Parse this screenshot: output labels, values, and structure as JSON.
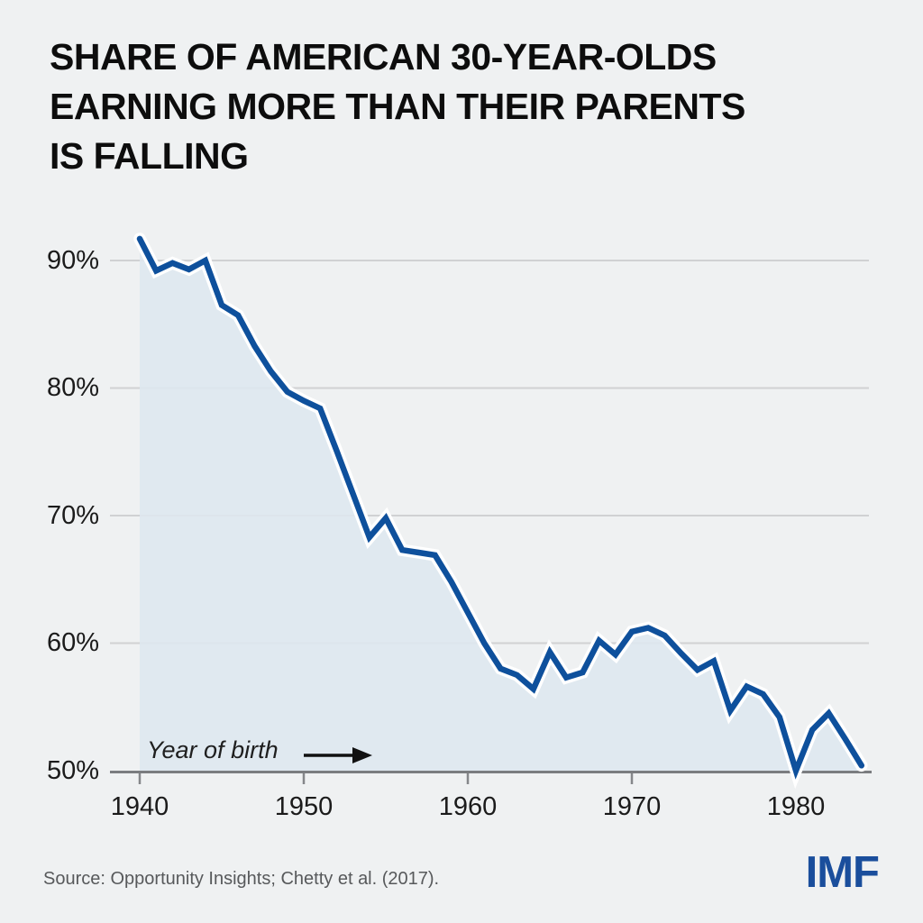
{
  "chart_data": {
    "type": "area",
    "title_lines": [
      "SHARE OF AMERICAN 30-YEAR-OLDS",
      "EARNING MORE THAN THEIR PARENTS",
      "IS FALLING"
    ],
    "x_axis_label": "Year of birth",
    "x": [
      1940,
      1941,
      1942,
      1943,
      1944,
      1945,
      1946,
      1947,
      1948,
      1949,
      1950,
      1951,
      1952,
      1953,
      1954,
      1955,
      1956,
      1957,
      1958,
      1959,
      1960,
      1961,
      1962,
      1963,
      1964,
      1965,
      1966,
      1967,
      1968,
      1969,
      1970,
      1971,
      1972,
      1973,
      1974,
      1975,
      1976,
      1977,
      1978,
      1979,
      1980,
      1981,
      1982,
      1983,
      1984
    ],
    "series": [
      {
        "name": "Share of 30-year-olds earning more than their parents (%)",
        "values": [
          91.7,
          89.2,
          89.8,
          89.3,
          90.0,
          86.5,
          85.7,
          83.3,
          81.3,
          79.7,
          79.0,
          78.4,
          75.1,
          71.7,
          68.3,
          69.8,
          67.3,
          67.1,
          66.9,
          64.8,
          62.4,
          60.0,
          58.0,
          57.5,
          56.4,
          59.3,
          57.3,
          57.7,
          60.2,
          59.1,
          60.9,
          61.2,
          60.6,
          59.2,
          57.9,
          58.6,
          54.7,
          56.6,
          56.0,
          54.2,
          50.0,
          53.2,
          54.5,
          52.5,
          50.4
        ]
      }
    ],
    "y_ticks": [
      {
        "label": "90%",
        "value": 90
      },
      {
        "label": "80%",
        "value": 80
      },
      {
        "label": "70%",
        "value": 70
      },
      {
        "label": "60%",
        "value": 60
      },
      {
        "label": "50%",
        "value": 50
      }
    ],
    "x_ticks": [
      {
        "label": "1940",
        "year": 1940
      },
      {
        "label": "1950",
        "year": 1950
      },
      {
        "label": "1960",
        "year": 1960
      },
      {
        "label": "1970",
        "year": 1970
      },
      {
        "label": "1980",
        "year": 1980
      }
    ],
    "ylim": [
      50,
      92.3
    ],
    "xlim": [
      1938.2,
      1985
    ],
    "grid": "horizontal",
    "legend": "none",
    "colors": {
      "line": "#0e509c",
      "line_casing": "#ffffff",
      "fill": "#dee7ef",
      "background": "#eff1f2",
      "gridline": "#d0d1d3",
      "axis": "#7b7d80",
      "tick": "#85878a",
      "axis_text": "#1b1b1b",
      "title": "#0d0d0d",
      "source_text": "#57595b",
      "logo": "#1a4e9c"
    }
  },
  "annotation": {
    "label": "Year of birth"
  },
  "footer": {
    "source": "Source: Opportunity Insights; Chetty et al. (2017).",
    "logo": "IMF"
  }
}
